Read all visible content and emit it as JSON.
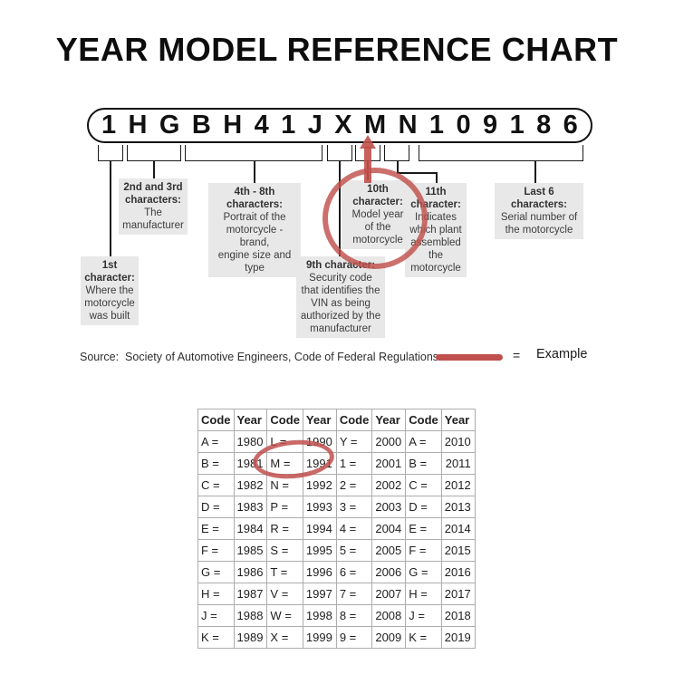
{
  "title": "YEAR MODEL REFERENCE CHART",
  "vin": {
    "characters": [
      "1",
      "H",
      "G",
      "B",
      "H",
      "4",
      "1",
      "J",
      "X",
      "M",
      "N",
      "1",
      "0",
      "9",
      "1",
      "8",
      "6"
    ]
  },
  "callouts": {
    "first": {
      "heading": "1st\ncharacter:",
      "body": "Where the\nmotorcycle\nwas built"
    },
    "second_third": {
      "heading": "2nd and 3rd\ncharacters:",
      "body": "The\nmanufacturer"
    },
    "fourth_eighth": {
      "heading": "4th - 8th\ncharacters:",
      "body": "Portrait of the\nmotorcycle - brand,\nengine size and type"
    },
    "ninth": {
      "heading": "9th character:",
      "body": "Security code\nthat identifies the\nVIN as being\nauthorized by the\nmanufacturer"
    },
    "tenth": {
      "heading": "10th\ncharacter:",
      "body": "Model year\nof the\nmotorcycle"
    },
    "eleventh": {
      "heading": "11th\ncharacter:",
      "body": "Indicates\nwhich plant\nassembled\nthe\nmotorcycle"
    },
    "last_six": {
      "heading": "Last 6\ncharacters:",
      "body": "Serial number of\nthe motorcycle"
    }
  },
  "source_text": "Source:  Society of Automotive Engineers, Code of Federal Regulations",
  "legend": {
    "equals_sign": "=",
    "label": "Example",
    "swatch": "red-example-line"
  },
  "annotations": {
    "arrow": "red-up-arrow-pointing-to-M",
    "circle_callout": "red-circle-around-10th-character-callout",
    "circle_table": "red-ellipse-around-M-1991"
  },
  "colors": {
    "accent_red": "#c0504d",
    "callout_bg": "#e8e8e8",
    "table_border": "#adadad"
  },
  "table": {
    "headers": [
      "Code",
      "Year",
      "Code",
      "Year",
      "Code",
      "Year",
      "Code",
      "Year"
    ],
    "rows": [
      [
        "A =",
        "1980",
        "L =",
        "1990",
        "Y =",
        "2000",
        "A =",
        "2010"
      ],
      [
        "B =",
        "1981",
        "M =",
        "1991",
        "1 =",
        "2001",
        "B =",
        "2011"
      ],
      [
        "C =",
        "1982",
        "N =",
        "1992",
        "2 =",
        "2002",
        "C =",
        "2012"
      ],
      [
        "D =",
        "1983",
        "P =",
        "1993",
        "3 =",
        "2003",
        "D =",
        "2013"
      ],
      [
        "E =",
        "1984",
        "R =",
        "1994",
        "4 =",
        "2004",
        "E =",
        "2014"
      ],
      [
        "F =",
        "1985",
        "S =",
        "1995",
        "5 =",
        "2005",
        "F =",
        "2015"
      ],
      [
        "G =",
        "1986",
        "T =",
        "1996",
        "6 =",
        "2006",
        "G =",
        "2016"
      ],
      [
        "H =",
        "1987",
        "V =",
        "1997",
        "7 =",
        "2007",
        "H =",
        "2017"
      ],
      [
        "J =",
        "1988",
        "W =",
        "1998",
        "8 =",
        "2008",
        "J =",
        "2018"
      ],
      [
        "K =",
        "1989",
        "X =",
        "1999",
        "9 =",
        "2009",
        "K =",
        "2019"
      ]
    ]
  }
}
